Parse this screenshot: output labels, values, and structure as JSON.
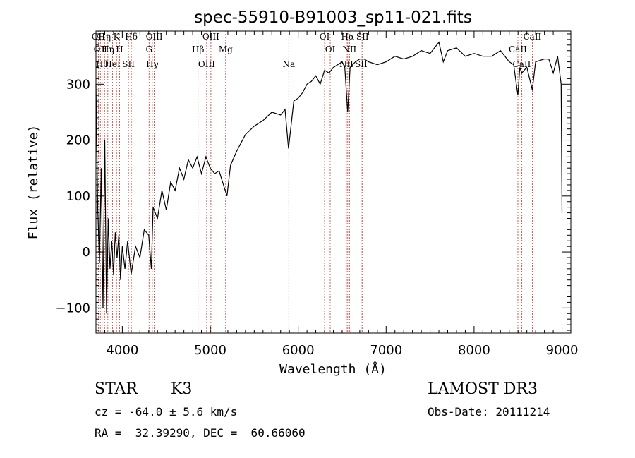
{
  "chart_data": {
    "type": "line",
    "title": "spec-55910-B91003_sp11-021.fits",
    "xlabel": "Wavelength (Å)",
    "ylabel": "Flux (relative)",
    "xlim": [
      3700,
      9100
    ],
    "ylim": [
      -145,
      395
    ],
    "xticks": [
      4000,
      5000,
      6000,
      7000,
      8000,
      9000
    ],
    "yticks": [
      -100,
      0,
      100,
      200,
      300
    ],
    "series": [
      {
        "x": [
          3700,
          3720,
          3740,
          3760,
          3780,
          3800,
          3820,
          3840,
          3860,
          3880,
          3900,
          3920,
          3940,
          3960,
          3980,
          4000,
          4030,
          4060,
          4100,
          4150,
          4200,
          4250,
          4300,
          4330,
          4350,
          4400,
          4450,
          4500,
          4550,
          4600,
          4650,
          4700,
          4750,
          4800,
          4850,
          4900,
          4950,
          5000,
          5050,
          5100,
          5150,
          5190,
          5230,
          5300,
          5400,
          5500,
          5600,
          5700,
          5800,
          5850,
          5890,
          5950,
          6000,
          6050,
          6100,
          6150,
          6200,
          6250,
          6300,
          6350,
          6400,
          6450,
          6500,
          6530,
          6563,
          6590,
          6650,
          6700,
          6750,
          6800,
          6900,
          7000,
          7100,
          7200,
          7300,
          7400,
          7500,
          7550,
          7600,
          7650,
          7700,
          7800,
          7900,
          8000,
          8100,
          8200,
          8300,
          8400,
          8450,
          8498,
          8520,
          8542,
          8570,
          8600,
          8662,
          8700,
          8800,
          8850,
          8900,
          8950,
          8990,
          9000
        ],
        "y": [
          300,
          80,
          -20,
          150,
          -100,
          200,
          -110,
          60,
          -30,
          20,
          -40,
          35,
          -10,
          30,
          -50,
          10,
          -30,
          20,
          -40,
          10,
          -10,
          40,
          30,
          -30,
          80,
          60,
          110,
          75,
          125,
          110,
          150,
          130,
          165,
          150,
          170,
          140,
          170,
          150,
          140,
          145,
          120,
          100,
          155,
          180,
          210,
          225,
          235,
          250,
          245,
          255,
          185,
          270,
          275,
          285,
          300,
          305,
          315,
          300,
          325,
          320,
          330,
          335,
          340,
          330,
          250,
          330,
          340,
          345,
          345,
          340,
          335,
          340,
          350,
          345,
          350,
          360,
          355,
          365,
          375,
          340,
          360,
          365,
          350,
          355,
          350,
          350,
          360,
          340,
          335,
          280,
          330,
          320,
          325,
          330,
          290,
          340,
          345,
          345,
          320,
          350,
          300,
          70
        ]
      }
    ],
    "lines": [
      {
        "wave": 3727,
        "label": "OII"
      },
      {
        "wave": 3750,
        "label": "OII"
      },
      {
        "wave": 3770,
        "label": "Hθ"
      },
      {
        "wave": 3798,
        "label": "Hη"
      },
      {
        "wave": 3835,
        "label": "Hη"
      },
      {
        "wave": 3889,
        "label": "HeI"
      },
      {
        "wave": 3934,
        "label": "K"
      },
      {
        "wave": 3969,
        "label": "H"
      },
      {
        "wave": 4070,
        "label": "SII"
      },
      {
        "wave": 4102,
        "label": "Hδ"
      },
      {
        "wave": 4304,
        "label": "G"
      },
      {
        "wave": 4341,
        "label": "Hγ"
      },
      {
        "wave": 4363,
        "label": "OIII"
      },
      {
        "wave": 4861,
        "label": "Hβ"
      },
      {
        "wave": 4959,
        "label": "OIII"
      },
      {
        "wave": 5007,
        "label": "OIII"
      },
      {
        "wave": 5175,
        "label": "Mg"
      },
      {
        "wave": 5893,
        "label": "Na"
      },
      {
        "wave": 6300,
        "label": "OI"
      },
      {
        "wave": 6364,
        "label": "OI"
      },
      {
        "wave": 6548,
        "label": "NII"
      },
      {
        "wave": 6563,
        "label": "Hα"
      },
      {
        "wave": 6583,
        "label": "NII"
      },
      {
        "wave": 6716,
        "label": "SII"
      },
      {
        "wave": 6731,
        "label": "SII"
      },
      {
        "wave": 8498,
        "label": "CaII"
      },
      {
        "wave": 8542,
        "label": "CaII"
      },
      {
        "wave": 8662,
        "label": "CaII"
      }
    ]
  },
  "info": {
    "object_class": "STAR",
    "subclass": "K3",
    "survey": "LAMOST DR3",
    "cz": "cz = -64.0 ± 5.6 km/s",
    "obs_date": "Obs-Date: 20111214",
    "coords": "RA =  32.39290, DEC =  60.66060"
  }
}
